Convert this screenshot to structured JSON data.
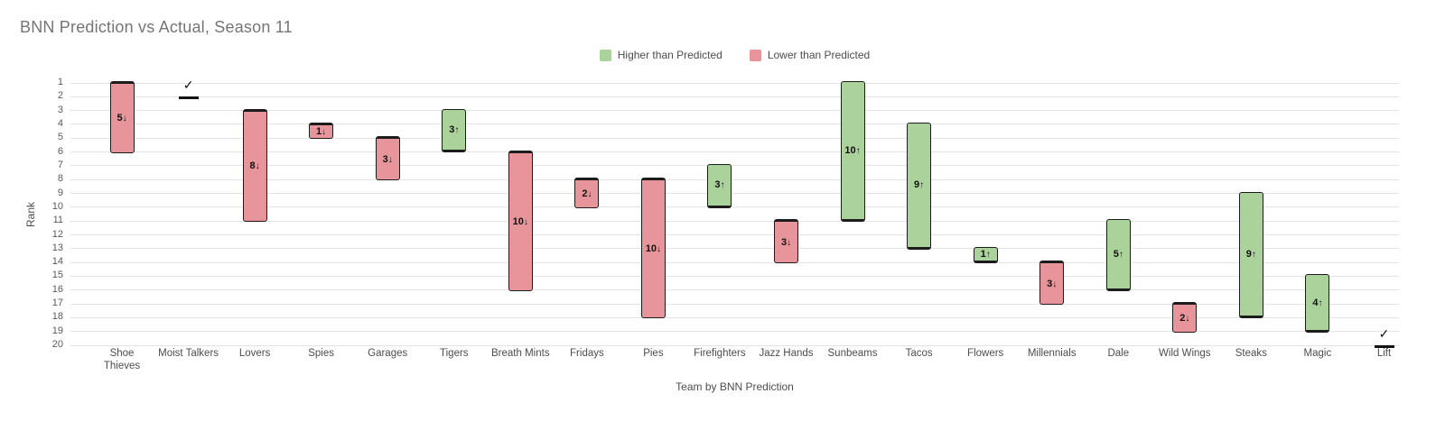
{
  "title": "BNN Prediction vs Actual, Season 11",
  "legend": {
    "items": [
      {
        "label": "Higher than Predicted",
        "color": "#abd29b"
      },
      {
        "label": "Lower than Predicted",
        "color": "#e7959a"
      }
    ]
  },
  "chart_data": {
    "type": "bar",
    "subtype": "floating-rank-range",
    "title": "BNN Prediction vs Actual, Season 11",
    "xlabel": "Team by BNN Prediction",
    "ylabel": "Rank",
    "y_axis": {
      "min": 1,
      "max": 20,
      "inverted": true,
      "ticks": [
        1,
        2,
        3,
        4,
        5,
        6,
        7,
        8,
        9,
        10,
        11,
        12,
        13,
        14,
        15,
        16,
        17,
        18,
        19,
        20
      ]
    },
    "grid": true,
    "legend_position": "top-center",
    "colors": {
      "higher": "#abd29b",
      "lower": "#e7959a",
      "exact": "#111111"
    },
    "teams": [
      {
        "name": "Shoe Thieves",
        "tick": "Shoe\nThieves",
        "predicted": 1,
        "actual": 6,
        "change": -5,
        "bar_label": "5↓"
      },
      {
        "name": "Moist Talkers",
        "tick": "Moist Talkers",
        "predicted": 2,
        "actual": 2,
        "change": 0,
        "bar_label": "✓"
      },
      {
        "name": "Lovers",
        "tick": "Lovers",
        "predicted": 3,
        "actual": 11,
        "change": -8,
        "bar_label": "8↓"
      },
      {
        "name": "Spies",
        "tick": "Spies",
        "predicted": 4,
        "actual": 5,
        "change": -1,
        "bar_label": "1↓"
      },
      {
        "name": "Garages",
        "tick": "Garages",
        "predicted": 5,
        "actual": 8,
        "change": -3,
        "bar_label": "3↓"
      },
      {
        "name": "Tigers",
        "tick": "Tigers",
        "predicted": 6,
        "actual": 3,
        "change": 3,
        "bar_label": "3↑"
      },
      {
        "name": "Breath Mints",
        "tick": "Breath Mints",
        "predicted": 6,
        "actual": 16,
        "change": -10,
        "bar_label": "10↓"
      },
      {
        "name": "Fridays",
        "tick": "Fridays",
        "predicted": 8,
        "actual": 10,
        "change": -2,
        "bar_label": "2↓"
      },
      {
        "name": "Pies",
        "tick": "Pies",
        "predicted": 8,
        "actual": 18,
        "change": -10,
        "bar_label": "10↓"
      },
      {
        "name": "Firefighters",
        "tick": "Firefighters",
        "predicted": 10,
        "actual": 7,
        "change": 3,
        "bar_label": "3↑"
      },
      {
        "name": "Jazz Hands",
        "tick": "Jazz Hands",
        "predicted": 11,
        "actual": 14,
        "change": -3,
        "bar_label": "3↓"
      },
      {
        "name": "Sunbeams",
        "tick": "Sunbeams",
        "predicted": 11,
        "actual": 1,
        "change": 10,
        "bar_label": "10↑"
      },
      {
        "name": "Tacos",
        "tick": "Tacos",
        "predicted": 13,
        "actual": 4,
        "change": 9,
        "bar_label": "9↑"
      },
      {
        "name": "Flowers",
        "tick": "Flowers",
        "predicted": 14,
        "actual": 13,
        "change": 1,
        "bar_label": "1↑"
      },
      {
        "name": "Millennials",
        "tick": "Millennials",
        "predicted": 14,
        "actual": 17,
        "change": -3,
        "bar_label": "3↓"
      },
      {
        "name": "Dale",
        "tick": "Dale",
        "predicted": 16,
        "actual": 11,
        "change": 5,
        "bar_label": "5↑"
      },
      {
        "name": "Wild Wings",
        "tick": "Wild Wings",
        "predicted": 17,
        "actual": 19,
        "change": -2,
        "bar_label": "2↓"
      },
      {
        "name": "Steaks",
        "tick": "Steaks",
        "predicted": 18,
        "actual": 9,
        "change": 9,
        "bar_label": "9↑"
      },
      {
        "name": "Magic",
        "tick": "Magic",
        "predicted": 19,
        "actual": 15,
        "change": 4,
        "bar_label": "4↑"
      },
      {
        "name": "Lift",
        "tick": "Lift",
        "predicted": 20,
        "actual": 20,
        "change": 0,
        "bar_label": "✓"
      }
    ]
  }
}
